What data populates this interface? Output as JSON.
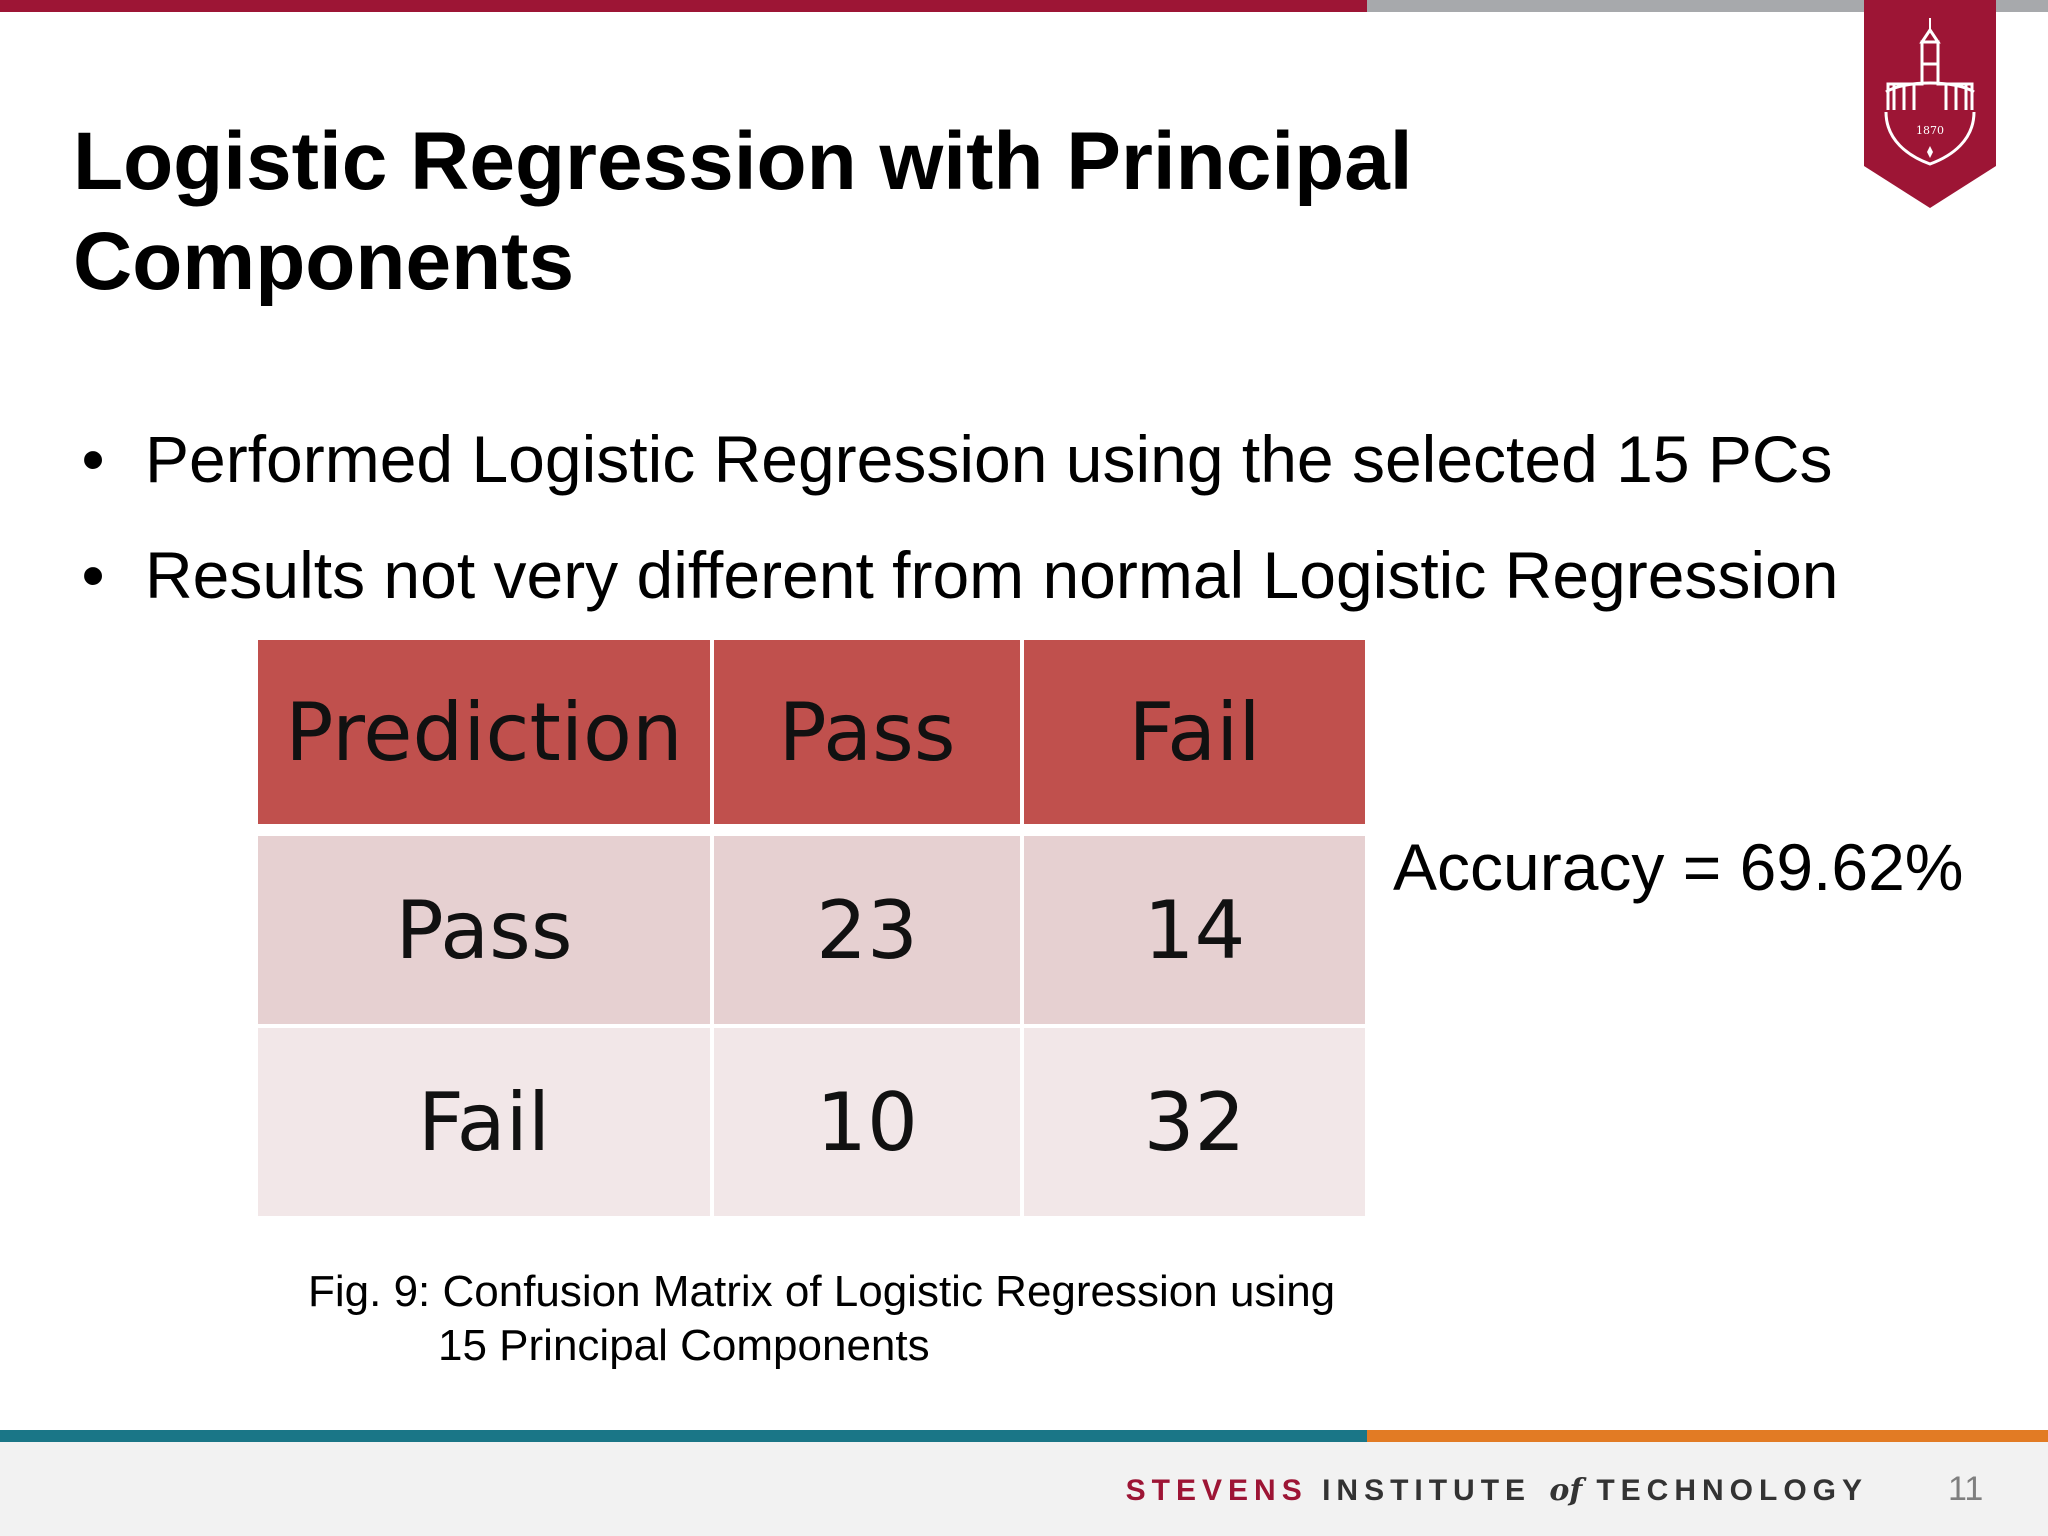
{
  "slide": {
    "title": "Logistic Regression with Principal Components",
    "bullets": [
      "Performed Logistic Regression using the selected 15 PCs",
      "Results not very different from normal Logistic Regression"
    ],
    "accuracy": "Accuracy = 69.62%",
    "caption_line1": "Fig. 9: Confusion Matrix of Logistic Regression using",
    "caption_line2": "15 Principal Components",
    "page_number": "11"
  },
  "confusion_matrix": {
    "header": [
      "Prediction",
      "Pass",
      "Fail"
    ],
    "rows": [
      [
        "Pass",
        "23",
        "14"
      ],
      [
        "Fail",
        "10",
        "32"
      ]
    ]
  },
  "logo": {
    "year": "1870"
  },
  "footer": {
    "brand_part1": "STEVENS",
    "brand_part2": "INSTITUTE",
    "brand_part3": "of",
    "brand_part4": "TECHNOLOGY"
  },
  "colors": {
    "brand_red": "#9d1535",
    "header_cell": "#c0504d",
    "row_dark": "#e6d0d1",
    "row_light": "#f2e7e8",
    "teal": "#1a7687",
    "orange": "#e27b24"
  }
}
